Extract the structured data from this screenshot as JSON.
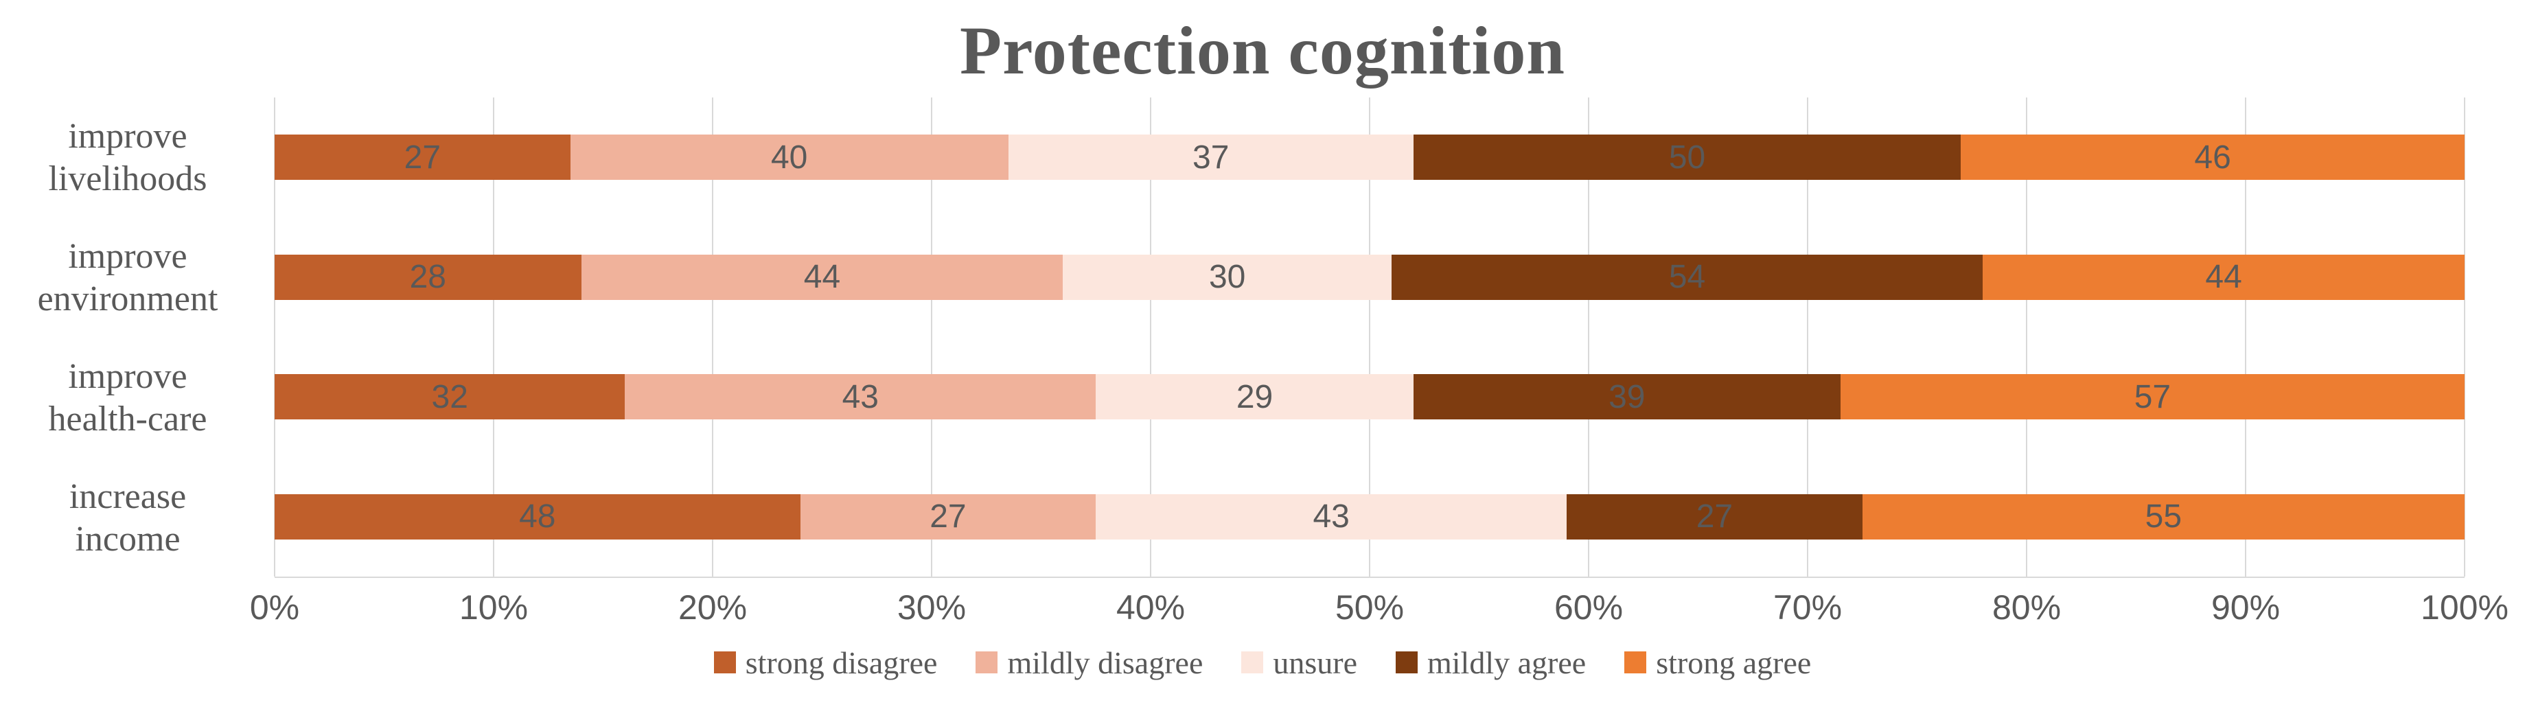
{
  "chart_data": {
    "type": "bar",
    "stacked": true,
    "orientation": "horizontal",
    "title": "Protection cognition",
    "categories": [
      "improve livelihoods",
      "improve environment",
      "improve health-care",
      "increase income"
    ],
    "category_lines": [
      [
        "improve",
        "livelihoods"
      ],
      [
        "improve",
        "environment"
      ],
      [
        "improve",
        "health-care"
      ],
      [
        "increase",
        "income"
      ]
    ],
    "series": [
      {
        "name": "strong disagree",
        "color": "#c05f2b",
        "values": [
          27,
          28,
          32,
          48
        ]
      },
      {
        "name": "mildly disagree",
        "color": "#f0b29b",
        "values": [
          40,
          44,
          43,
          27
        ]
      },
      {
        "name": "unsure",
        "color": "#fce6dd",
        "values": [
          37,
          30,
          29,
          43
        ]
      },
      {
        "name": "mildly agree",
        "color": "#7e3c10",
        "values": [
          50,
          54,
          39,
          27
        ]
      },
      {
        "name": "strong agree",
        "color": "#ed7d31",
        "values": [
          46,
          44,
          57,
          55
        ]
      }
    ],
    "x_ticks": [
      "0%",
      "10%",
      "20%",
      "30%",
      "40%",
      "50%",
      "60%",
      "70%",
      "80%",
      "90%",
      "100%"
    ],
    "xlim": [
      0,
      100
    ],
    "grid": true,
    "legend_position": "bottom",
    "colors": {
      "title": "#595959",
      "text": "#595959",
      "data_label": "#595959",
      "grid": "#d9d9d9",
      "axis": "#d9d9d9",
      "background": "#ffffff"
    }
  }
}
